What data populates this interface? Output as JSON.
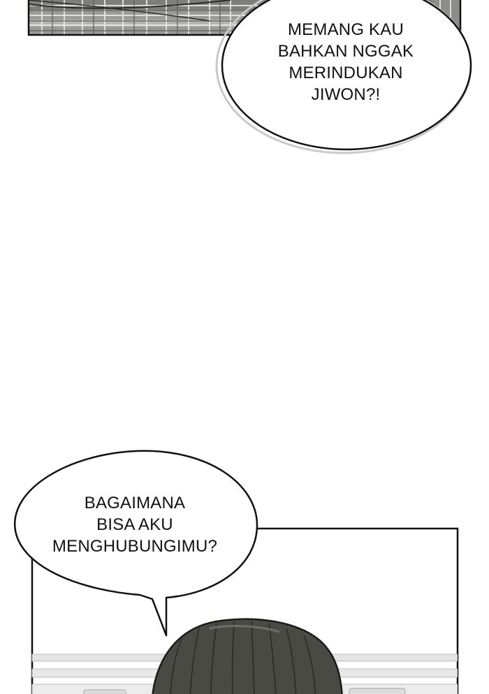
{
  "panels": {
    "top_bubble": {
      "lines": [
        "MEMANG KAU",
        "BAHKAN NGGAK",
        "MERINDUKAN",
        "JIWON?!"
      ]
    },
    "bottom_bubble": {
      "lines": [
        "BAGAIMANA",
        "BISA AKU",
        "MENGHUBUNGIMU?"
      ]
    }
  },
  "colors": {
    "background": "#ffffff",
    "ink": "#111111",
    "hair": "#4a4a44",
    "window_frame": "#d9d9d9"
  }
}
